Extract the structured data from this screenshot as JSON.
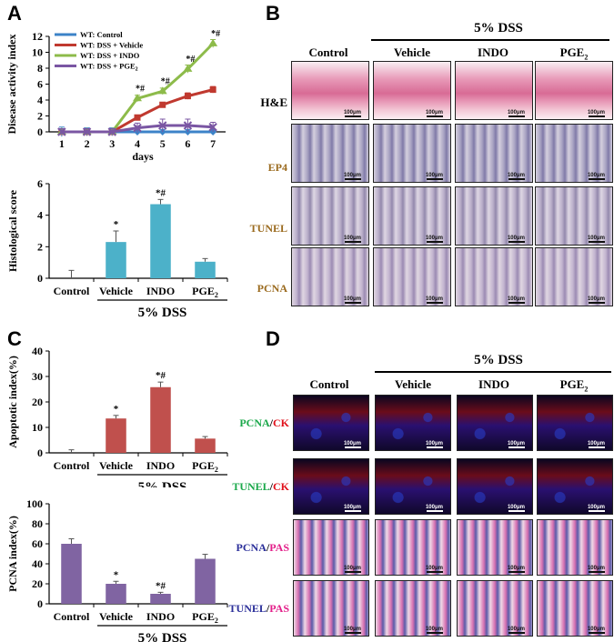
{
  "panels": {
    "a": "A",
    "b": "B",
    "c": "C",
    "d": "D"
  },
  "chart_data": [
    {
      "id": "A-line",
      "type": "line",
      "xlabel": "days",
      "ylabel": "Disease activity index",
      "x": [
        1,
        2,
        3,
        4,
        5,
        6,
        7
      ],
      "xlim": [
        0.5,
        7.5
      ],
      "ylim": [
        0,
        12
      ],
      "yticks": [
        0,
        2,
        4,
        6,
        8,
        10,
        12
      ],
      "series": [
        {
          "name": "WT: Control",
          "color": "#3c83c8",
          "values": [
            0,
            0,
            0,
            0,
            0,
            0,
            0
          ],
          "err": [
            0.6,
            0.5,
            0.5,
            0.3,
            0.3,
            0.3,
            0.3
          ]
        },
        {
          "name": "WT: DSS + Vehicle",
          "color": "#c0392f",
          "values": [
            0,
            0,
            0,
            1.8,
            3.4,
            4.5,
            5.3
          ],
          "err": [
            0.3,
            0.3,
            0.3,
            0.3,
            0.3,
            0.4,
            0.4
          ]
        },
        {
          "name": "WT: DSS + INDO",
          "color": "#8dbb4a",
          "values": [
            0,
            0,
            0,
            4.2,
            5.1,
            7.9,
            11.1
          ],
          "err": [
            0.3,
            0.3,
            0.3,
            0.4,
            0.4,
            0.5,
            0.5
          ]
        },
        {
          "name": "WT: DSS + PGE2",
          "color": "#7a56a3",
          "values": [
            0,
            0,
            0,
            0.5,
            0.8,
            0.8,
            0.6
          ],
          "err": [
            0.4,
            0.4,
            0.4,
            0.6,
            0.8,
            0.8,
            0.6
          ]
        }
      ],
      "annotations": [
        {
          "x": 4,
          "y": 4.2,
          "text": "*#"
        },
        {
          "x": 5,
          "y": 5.1,
          "text": "*#"
        },
        {
          "x": 6,
          "y": 7.9,
          "text": "*#"
        },
        {
          "x": 7,
          "y": 11.1,
          "text": "*#"
        }
      ]
    },
    {
      "id": "A-bar",
      "type": "bar",
      "ylabel": "Histological score",
      "categories": [
        "Control",
        "Vehicle",
        "INDO",
        "PGE2"
      ],
      "values": [
        0,
        2.3,
        4.7,
        1.05
      ],
      "err": [
        0.5,
        0.7,
        0.3,
        0.2
      ],
      "marks": [
        "",
        "*",
        "*#",
        ""
      ],
      "color": "#4cb1c9",
      "ylim": [
        0,
        6
      ],
      "yticks": [
        0,
        2,
        4,
        6
      ],
      "group_label": "5% DSS"
    },
    {
      "id": "C-apoptotic",
      "type": "bar",
      "ylabel": "Apoptotic index(%)",
      "categories": [
        "Control",
        "Vehicle",
        "INDO",
        "PGE2"
      ],
      "values": [
        0,
        13.5,
        25.8,
        5.6
      ],
      "err": [
        1.2,
        1.2,
        2.0,
        0.8
      ],
      "marks": [
        "",
        "*",
        "*#",
        ""
      ],
      "color": "#c0504d",
      "ylim": [
        0,
        40
      ],
      "yticks": [
        0,
        10,
        20,
        30,
        40
      ],
      "group_label": "5% DSS"
    },
    {
      "id": "C-pcna",
      "type": "bar",
      "ylabel": "PCNA index(%)",
      "categories": [
        "Control",
        "Vehicle",
        "INDO",
        "PGE2"
      ],
      "values": [
        60,
        20,
        10,
        45
      ],
      "err": [
        5,
        2.5,
        1.5,
        4.5
      ],
      "marks": [
        "",
        "*",
        "*#",
        ""
      ],
      "color": "#8064a2",
      "ylim": [
        0,
        100
      ],
      "yticks": [
        0,
        20,
        40,
        60,
        80,
        100
      ],
      "group_label": "5% DSS"
    }
  ],
  "panelB": {
    "group_label": "5% DSS",
    "columns": [
      "Control",
      "Vehicle",
      "INDO",
      "PGE"
    ],
    "pge_sub": "2",
    "rows": [
      {
        "label": "H&E",
        "color": "#000000"
      },
      {
        "label": "EP4",
        "color": "#9b6b1f"
      },
      {
        "label": "TUNEL",
        "color": "#9b6b1f"
      },
      {
        "label": "PCNA",
        "color": "#9b6b1f"
      }
    ],
    "scale": "100μm"
  },
  "panelD": {
    "group_label": "5% DSS",
    "columns": [
      "Control",
      "Vehicle",
      "INDO",
      "PGE"
    ],
    "pge_sub": "2",
    "rows": [
      {
        "a": "PCNA",
        "ac": "#1aa84a",
        "b": "CK",
        "bc": "#e0101a"
      },
      {
        "a": "TUNEL",
        "ac": "#1aa84a",
        "b": "CK",
        "bc": "#e0101a"
      },
      {
        "a": "PCNA",
        "ac": "#2b2f9a",
        "b": "PAS",
        "bc": "#e3208a"
      },
      {
        "a": "TUNEL",
        "ac": "#2b2f9a",
        "b": "PAS",
        "bc": "#e3208a"
      }
    ],
    "sep": "/",
    "scale": "100μm"
  }
}
